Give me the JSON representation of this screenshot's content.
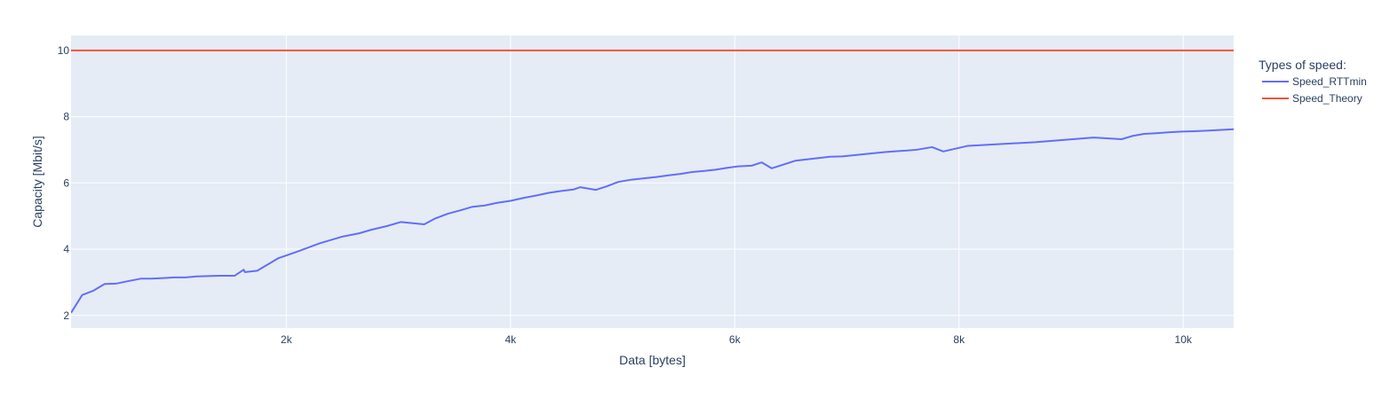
{
  "chart_data": {
    "type": "line",
    "xlabel": "Data [bytes]",
    "ylabel": "Capacity [Mbit/s]",
    "xlim": [
      80,
      10450
    ],
    "ylim": [
      1.62,
      10.45
    ],
    "xticks": [
      2000,
      4000,
      6000,
      8000,
      10000
    ],
    "xtick_labels": [
      "2k",
      "4k",
      "6k",
      "8k",
      "10k"
    ],
    "yticks": [
      2,
      4,
      6,
      8,
      10
    ],
    "ytick_labels": [
      "2",
      "4",
      "6",
      "8",
      "10"
    ],
    "grid": true,
    "legend": {
      "title": "Types of speed:",
      "placement": "top-right, outside plot"
    },
    "colors": {
      "plot_background": "#e5ecf6",
      "grid": "#ffffff",
      "text": "#2a3f5f"
    },
    "series": [
      {
        "name": "Speed_RTTmin",
        "color": "#636efa",
        "x": [
          80,
          180,
          280,
          380,
          480,
          580,
          700,
          800,
          900,
          1000,
          1100,
          1200,
          1300,
          1400,
          1500,
          1540,
          1620,
          1630,
          1740,
          1930,
          2100,
          2300,
          2500,
          2650,
          2750,
          2900,
          3020,
          3230,
          3330,
          3440,
          3560,
          3660,
          3770,
          3880,
          4000,
          4120,
          4230,
          4340,
          4460,
          4560,
          4620,
          4760,
          4860,
          4960,
          5080,
          5190,
          5300,
          5410,
          5510,
          5620,
          5720,
          5830,
          5940,
          6030,
          6150,
          6240,
          6330,
          6540,
          6850,
          6960,
          7340,
          7620,
          7760,
          7860,
          8080,
          8680,
          9200,
          9450,
          9550,
          9650,
          9760,
          9880,
          9990,
          10100,
          10230,
          10340,
          10450
        ],
        "y": [
          2.08,
          2.62,
          2.75,
          2.95,
          2.96,
          3.03,
          3.11,
          3.11,
          3.13,
          3.15,
          3.15,
          3.18,
          3.19,
          3.2,
          3.2,
          3.2,
          3.38,
          3.31,
          3.35,
          3.73,
          3.93,
          4.18,
          4.38,
          4.48,
          4.58,
          4.7,
          4.82,
          4.75,
          4.93,
          5.07,
          5.18,
          5.28,
          5.32,
          5.4,
          5.46,
          5.55,
          5.62,
          5.7,
          5.76,
          5.8,
          5.87,
          5.79,
          5.9,
          6.03,
          6.1,
          6.14,
          6.18,
          6.23,
          6.27,
          6.33,
          6.36,
          6.4,
          6.46,
          6.5,
          6.52,
          6.62,
          6.44,
          6.67,
          6.79,
          6.8,
          6.93,
          7.0,
          7.08,
          6.95,
          7.12,
          7.23,
          7.37,
          7.32,
          7.42,
          7.48,
          7.5,
          7.53,
          7.55,
          7.56,
          7.58,
          7.6,
          7.62
        ]
      },
      {
        "name": "Speed_Theory",
        "color": "#ef553b",
        "x": [
          80,
          10450
        ],
        "y": [
          10,
          10
        ]
      }
    ]
  }
}
